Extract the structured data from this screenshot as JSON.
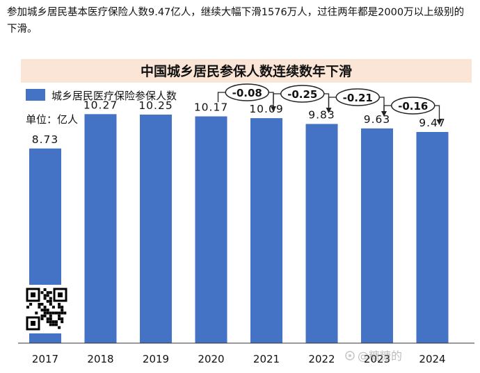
{
  "caption": "参加城乡居民基本医疗保险人数9.47亿人，继续大幅下滑1576万人，过往两年都是2000万以上级别的下滑。",
  "colors": {
    "bar": "#4472C4",
    "title_bg": "#FBE5D6",
    "axis": "#333333"
  },
  "watermark": "@糖糖的",
  "chart_data": {
    "type": "bar",
    "title": "中国城乡居民参保人数连续数年下滑",
    "legend_label": "城乡居民医疗保险参保人数",
    "unit_label": "单位：亿人",
    "categories": [
      "2017",
      "2018",
      "2019",
      "2020",
      "2021",
      "2022",
      "2023",
      "2024"
    ],
    "values": [
      8.73,
      10.27,
      10.25,
      10.17,
      10.09,
      9.83,
      9.63,
      9.47
    ],
    "value_labels": [
      "8.73",
      "10.27",
      "10.25",
      "10.17",
      "10.09",
      "9.83",
      "9.63",
      "9.47"
    ],
    "changes": [
      {
        "from": "2020",
        "to": "2021",
        "label": "-0.08"
      },
      {
        "from": "2021",
        "to": "2022",
        "label": "-0.25"
      },
      {
        "from": "2022",
        "to": "2023",
        "label": "-0.21"
      },
      {
        "from": "2023",
        "to": "2024",
        "label": "-0.16"
      }
    ],
    "ylim": [
      0,
      11.5
    ],
    "grid": false,
    "legend_position": "top-left"
  }
}
